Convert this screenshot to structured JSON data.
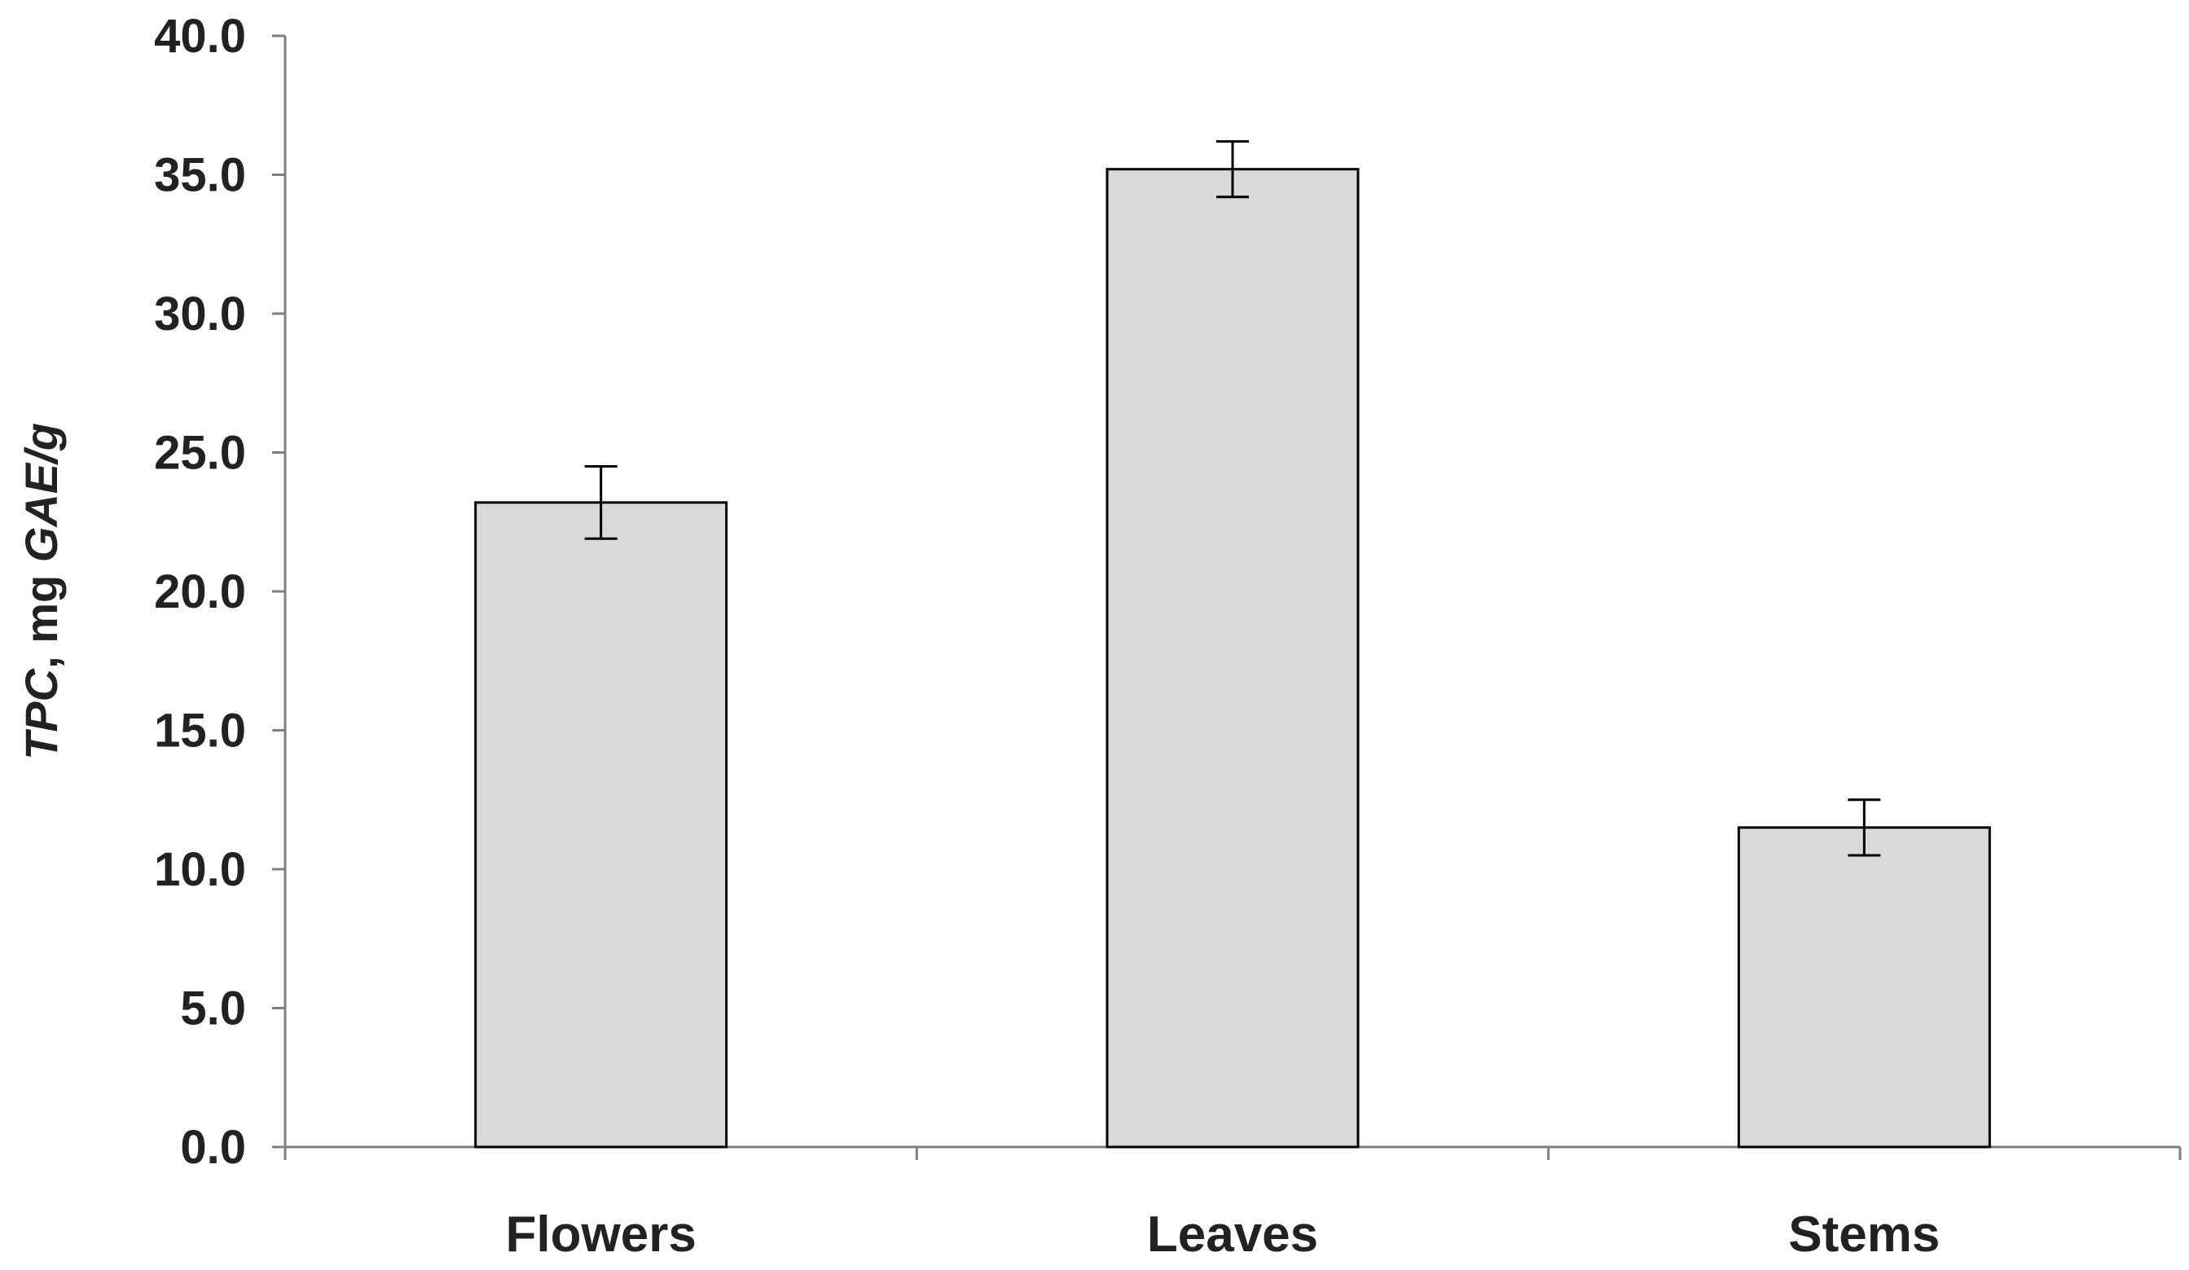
{
  "chart_data": {
    "type": "bar",
    "categories": [
      "Flowers",
      "Leaves",
      "Stems"
    ],
    "values": [
      23.2,
      35.2,
      11.5
    ],
    "errors": [
      1.3,
      1.0,
      1.0
    ],
    "title": "",
    "xlabel": "",
    "ylabel_parts": [
      "TPC",
      ", mg ",
      "GAE",
      "/g"
    ],
    "ylim": [
      0,
      40
    ],
    "yticks": [
      "0.0",
      "5.0",
      "10.0",
      "15.0",
      "20.0",
      "25.0",
      "30.0",
      "35.0",
      "40.0"
    ],
    "grid": false,
    "legend": "none",
    "colors": {
      "bar_fill": "#d9d9d9",
      "bar_stroke": "#000000",
      "axis": "#7f7f7f",
      "text": "#222222"
    }
  }
}
